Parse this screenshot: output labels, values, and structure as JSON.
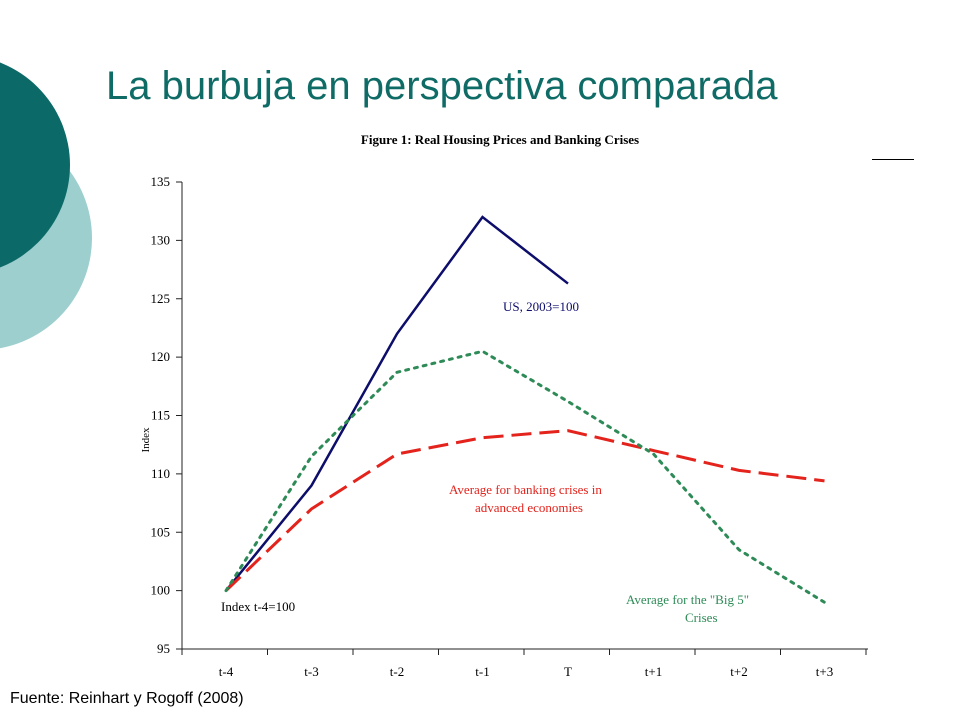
{
  "slide": {
    "title": "La burbuja en perspectiva comparada",
    "source": "Fuente: Reinhart y Rogoff (2008)",
    "theme_dark": "#0b6a67",
    "theme_light": "#9dcfcf",
    "title_color": "#0f6b66"
  },
  "chart_data": {
    "type": "line",
    "title": "Figure 1:  Real Housing Prices and Banking Crises",
    "ylabel": "Index",
    "xlabel": "",
    "categories": [
      "t-4",
      "t-3",
      "t-2",
      "t-1",
      "T",
      "t+1",
      "t+2",
      "t+3"
    ],
    "ylim": [
      95,
      135
    ],
    "yticks": [
      95,
      100,
      105,
      110,
      115,
      120,
      125,
      130,
      135
    ],
    "grid": false,
    "series": [
      {
        "name": "US, 2003=100",
        "style": "solid",
        "color": "#0d0d6b",
        "values": [
          100,
          109,
          122,
          132,
          126.3,
          null,
          null,
          null
        ]
      },
      {
        "name": "Average for banking crises in advanced economies",
        "style": "dashed",
        "color": "#e3231c",
        "values": [
          100,
          107,
          111.7,
          113.1,
          113.7,
          112,
          110.3,
          109.4
        ]
      },
      {
        "name": "Average for the \"Big 5\" Crises",
        "style": "dotted",
        "color": "#2e8b57",
        "values": [
          100,
          111.5,
          118.7,
          120.5,
          116.2,
          111.7,
          103.5,
          99
        ]
      }
    ],
    "annotations": [
      {
        "text": "US, 2003=100",
        "color": "#0d0d6b"
      },
      {
        "text": "Average for banking crises in",
        "color": "#e3231c"
      },
      {
        "text": "advanced economies",
        "color": "#e3231c"
      },
      {
        "text": "Average for the \"Big 5\"",
        "color": "#2e8b57"
      },
      {
        "text": "Crises",
        "color": "#2e8b57"
      },
      {
        "text": "Index t-4=100",
        "color": "#000000"
      }
    ]
  }
}
